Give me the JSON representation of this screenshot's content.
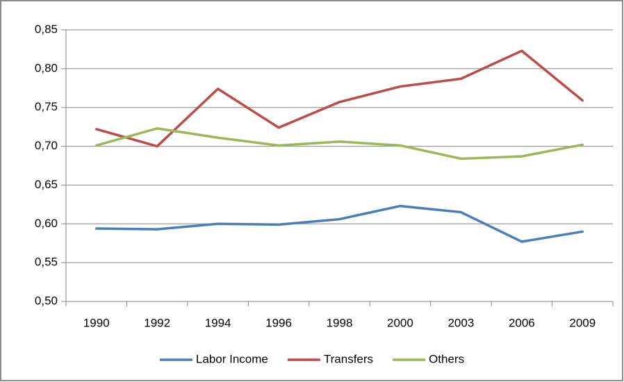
{
  "chart_data": {
    "type": "line",
    "categories": [
      "1990",
      "1992",
      "1994",
      "1996",
      "1998",
      "2000",
      "2003",
      "2006",
      "2009"
    ],
    "series": [
      {
        "name": "Labor Income",
        "color": "#4a7ebb",
        "values": [
          0.594,
          0.593,
          0.6,
          0.599,
          0.606,
          0.623,
          0.615,
          0.577,
          0.59
        ]
      },
      {
        "name": "Transfers",
        "color": "#be4b48",
        "values": [
          0.722,
          0.7,
          0.774,
          0.724,
          0.757,
          0.777,
          0.787,
          0.823,
          0.759
        ]
      },
      {
        "name": "Others",
        "color": "#98b954",
        "values": [
          0.701,
          0.723,
          0.711,
          0.701,
          0.706,
          0.701,
          0.684,
          0.687,
          0.702
        ]
      }
    ],
    "ylim": [
      0.5,
      0.85
    ],
    "yticks": [
      {
        "value": 0.5,
        "label": "0,50"
      },
      {
        "value": 0.55,
        "label": "0,55"
      },
      {
        "value": 0.6,
        "label": "0,60"
      },
      {
        "value": 0.65,
        "label": "0,65"
      },
      {
        "value": 0.7,
        "label": "0,70"
      },
      {
        "value": 0.75,
        "label": "0,75"
      },
      {
        "value": 0.8,
        "label": "0,80"
      },
      {
        "value": 0.85,
        "label": "0,85"
      }
    ],
    "grid": true,
    "legend": "bottom"
  }
}
